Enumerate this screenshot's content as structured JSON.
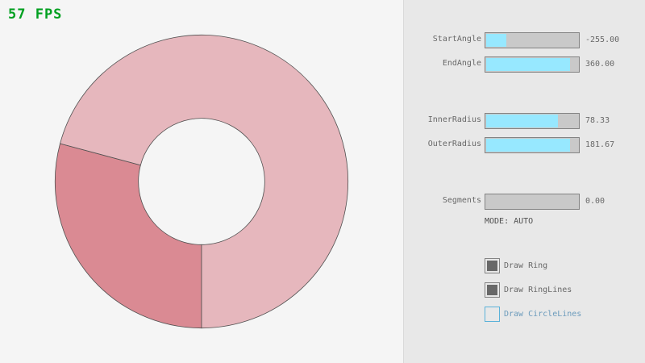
{
  "fps_text": "57 FPS",
  "ring": {
    "start_angle": -255,
    "end_angle": 360,
    "inner_radius": 78.33,
    "outer_radius": 181.67,
    "colors": {
      "overlap": "#DA8A93",
      "single": "#E6B7BD",
      "lines": "#505050"
    }
  },
  "controls": {
    "sliders": [
      {
        "label": "StartAngle",
        "value": "-255.00",
        "fill": 0.22
      },
      {
        "label": "EndAngle",
        "value": "360.00",
        "fill": 0.91
      },
      {
        "label": "InnerRadius",
        "value": "78.33",
        "fill": 0.78
      },
      {
        "label": "OuterRadius",
        "value": "181.67",
        "fill": 0.91
      },
      {
        "label": "Segments",
        "value": "0.00",
        "fill": 0
      }
    ],
    "mode_text": "MODE: AUTO",
    "checkboxes": [
      {
        "label": "Draw Ring",
        "checked": true
      },
      {
        "label": "Draw RingLines",
        "checked": true
      },
      {
        "label": "Draw CircleLines",
        "checked": false
      }
    ],
    "accent": "#97E8FF"
  }
}
